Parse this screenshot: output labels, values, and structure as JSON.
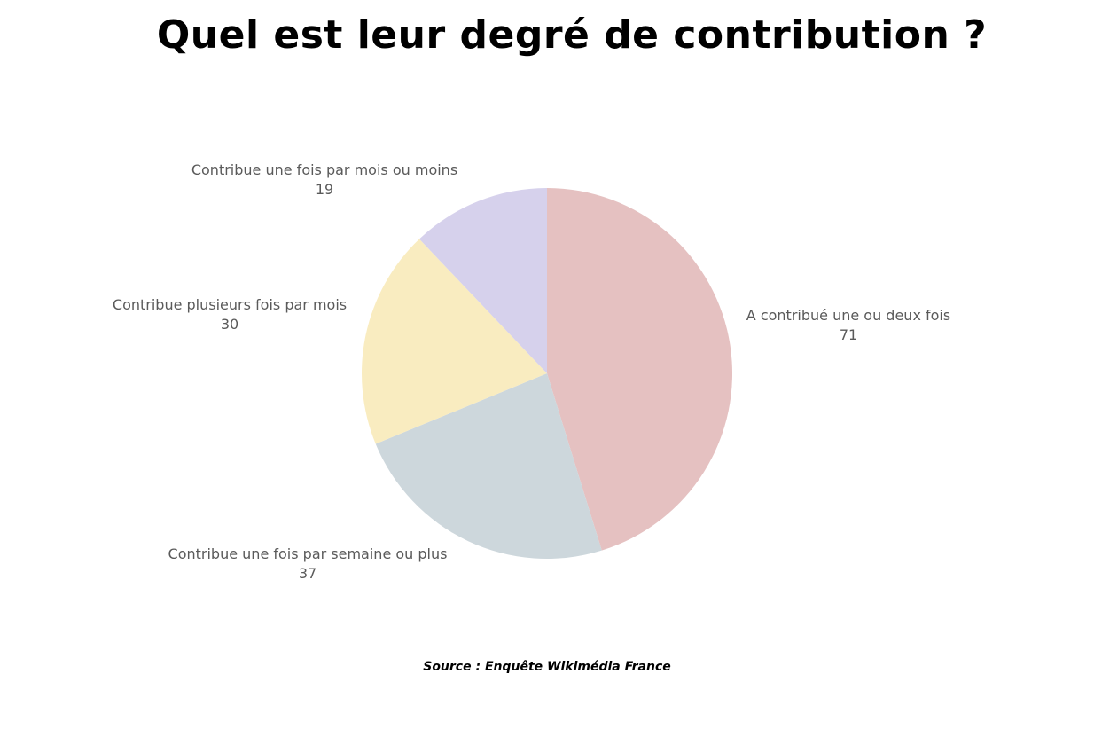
{
  "chart_data": {
    "type": "pie",
    "title": "Quel est leur degré de contribution ?",
    "slices": [
      {
        "label": "A contribué une ou deux fois",
        "value": 71,
        "color": "#e5c1c1"
      },
      {
        "label": "Contribue une fois par semaine ou plus",
        "value": 37,
        "color": "#cdd7dc"
      },
      {
        "label": "Contribue plusieurs fois par mois",
        "value": 30,
        "color": "#f9ecc0"
      },
      {
        "label": "Contribue une fois par mois ou moins",
        "value": 19,
        "color": "#d6d1ec"
      }
    ],
    "start": "top",
    "direction": "clockwise"
  },
  "source": "Source : Enquête Wikimédia France"
}
